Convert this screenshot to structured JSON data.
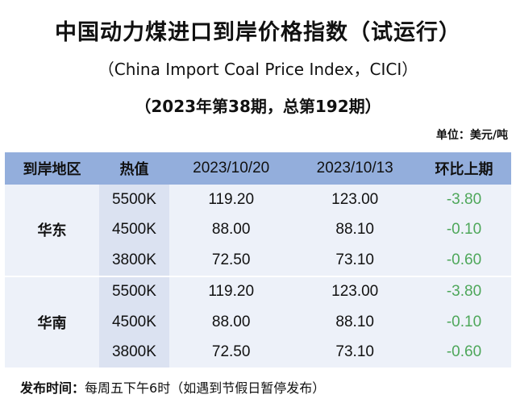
{
  "title": "中国动力煤进口到岸价格指数（试运行）",
  "subtitle": "（China Import Coal Price Index，CICI）",
  "issue": "（2023年第38期，总第192期）",
  "unit": "单位：美元/吨",
  "table": {
    "headers": [
      "到岸地区",
      "热值",
      "2023/10/20",
      "2023/10/13",
      "环比上期"
    ],
    "groups": [
      {
        "region": "华东",
        "rows": [
          [
            "5500K",
            "119.20",
            "123.00",
            "-3.80"
          ],
          [
            "4500K",
            "88.00",
            "88.10",
            "-0.10"
          ],
          [
            "3800K",
            "72.50",
            "73.10",
            "-0.60"
          ]
        ]
      },
      {
        "region": "华南",
        "rows": [
          [
            "5500K",
            "119.20",
            "123.00",
            "-3.80"
          ],
          [
            "4500K",
            "88.00",
            "88.10",
            "-0.10"
          ],
          [
            "3800K",
            "72.50",
            "73.10",
            "-0.60"
          ]
        ]
      }
    ]
  },
  "footer": {
    "label": "发布时间：",
    "text": "每周五下午6时（如遇到节假日暂停发布）"
  },
  "colors": {
    "header_bg": "#93aedc",
    "body_bg": "#edf1f9",
    "heat_col_bg": "#dbe2f1",
    "change_green": "#4ea75a"
  }
}
